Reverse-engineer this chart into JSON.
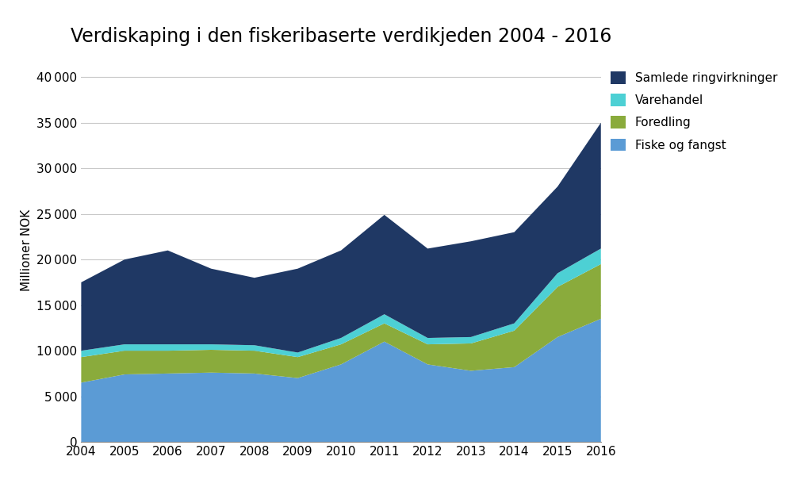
{
  "title": "Verdiskaping i den fiskeribaserte verdikjeden 2004 - 2016",
  "ylabel": "Millioner NOK",
  "years": [
    2004,
    2005,
    2006,
    2007,
    2008,
    2009,
    2010,
    2011,
    2012,
    2013,
    2014,
    2015,
    2016
  ],
  "fiske_og_fangst": [
    6500,
    7400,
    7500,
    7600,
    7500,
    7000,
    8500,
    11000,
    8500,
    7800,
    8200,
    11500,
    13500
  ],
  "foredling": [
    2800,
    2600,
    2500,
    2500,
    2500,
    2300,
    2200,
    2000,
    2200,
    3000,
    4000,
    5500,
    6000
  ],
  "varehandel": [
    700,
    700,
    700,
    600,
    600,
    500,
    700,
    1000,
    700,
    700,
    800,
    1500,
    1700
  ],
  "ringvirkninger": [
    7500,
    9300,
    10300,
    8300,
    7400,
    9200,
    9600,
    10900,
    9800,
    10500,
    10000,
    9500,
    13800
  ],
  "colors": {
    "fiske_og_fangst": "#5B9BD5",
    "foredling": "#8AAB3C",
    "varehandel": "#4DD0D4",
    "ringvirkninger": "#1F3864"
  },
  "legend_labels": [
    "Samlede ringvirkninger",
    "Varehandel",
    "Foredling",
    "Fiske og fangst"
  ],
  "ylim": [
    0,
    42000
  ],
  "yticks": [
    0,
    5000,
    10000,
    15000,
    20000,
    25000,
    30000,
    35000,
    40000
  ],
  "background_color": "#ffffff",
  "title_fontsize": 17,
  "axis_fontsize": 11,
  "legend_fontsize": 11
}
